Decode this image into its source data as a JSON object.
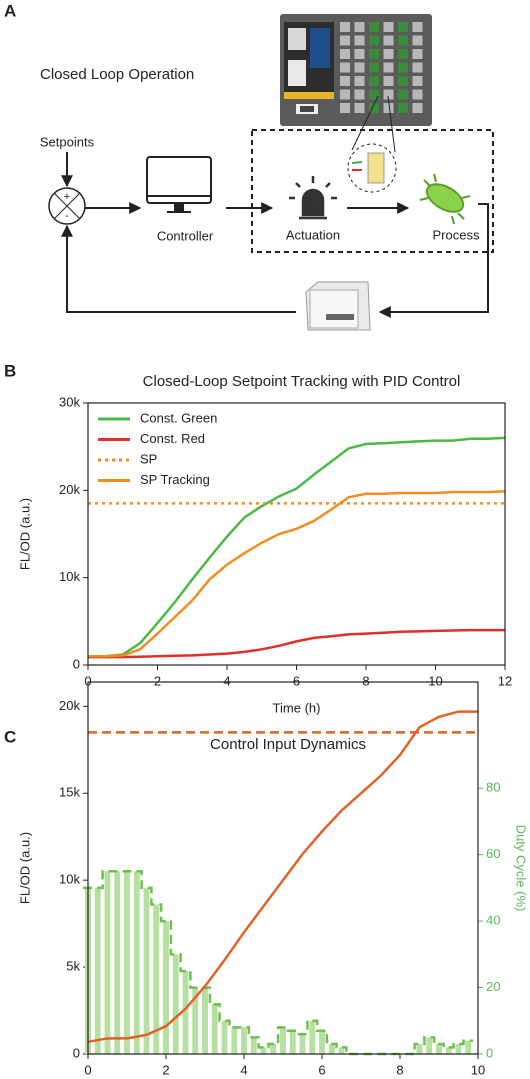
{
  "panel_a": {
    "panel": "A",
    "title": "Closed Loop Operation",
    "nodes": {
      "setpoints": "Setpoints",
      "plus": "+",
      "minus": "-",
      "controller": "Controller",
      "actuation": "Actuation",
      "process": "Process"
    }
  },
  "chart_data": [
    {
      "type": "line",
      "panel": "B",
      "title": "Closed-Loop Setpoint Tracking with PID Control",
      "xlabel": "Time (h)",
      "ylabel": "FL/OD (a.u.)",
      "x": [
        0,
        0.5,
        1,
        1.5,
        2,
        2.5,
        3,
        3.5,
        4,
        4.5,
        5,
        5.5,
        6,
        6.5,
        7,
        7.5,
        8,
        8.5,
        9,
        9.5,
        10,
        10.5,
        11,
        11.5,
        12
      ],
      "series": [
        {
          "name": "Const. Green",
          "color": "#4cb944",
          "linestyle": "solid",
          "values": [
            1000,
            1000,
            1200,
            2500,
            4800,
            7200,
            9800,
            12300,
            14700,
            16900,
            18200,
            19300,
            20200,
            21800,
            23300,
            24800,
            25300,
            25400,
            25500,
            25600,
            25700,
            25700,
            25900,
            25900,
            26000
          ]
        },
        {
          "name": "Const. Red",
          "color": "#e0302a",
          "linestyle": "solid",
          "values": [
            900,
            900,
            900,
            950,
            1000,
            1050,
            1100,
            1200,
            1300,
            1500,
            1800,
            2200,
            2700,
            3100,
            3300,
            3500,
            3600,
            3700,
            3800,
            3850,
            3900,
            3950,
            4000,
            4000,
            4000
          ]
        },
        {
          "name": "SP",
          "color": "#f28c1e",
          "linestyle": "dotted",
          "x": [
            0,
            12
          ],
          "values": [
            18500,
            18500
          ]
        },
        {
          "name": "SP Tracking",
          "color": "#f28c1e",
          "linestyle": "solid",
          "values": [
            1000,
            1000,
            1100,
            1800,
            3600,
            5500,
            7400,
            9800,
            11500,
            12800,
            14000,
            15000,
            15600,
            16500,
            17800,
            19200,
            19600,
            19600,
            19700,
            19700,
            19700,
            19800,
            19800,
            19800,
            19900
          ]
        }
      ],
      "xlim": [
        0,
        12
      ],
      "xticks": [
        0,
        2,
        4,
        6,
        8,
        10,
        12
      ],
      "ylim": [
        0,
        30000
      ],
      "yticks": [
        0,
        {
          "value": 10000,
          "label": "10k"
        },
        {
          "value": 20000,
          "label": "20k"
        },
        {
          "value": 30000,
          "label": "30k"
        }
      ],
      "legend": "upper left"
    },
    {
      "type": "combo",
      "panel": "C",
      "title": "Control Input Dynamics",
      "xlabel": "Time (h)",
      "ylabel": "FL/OD (a.u.)",
      "y2label": "Duty Cycle (%)",
      "y2color": "#5cb85c",
      "x": [
        0,
        0.5,
        1,
        1.5,
        2,
        2.5,
        3,
        3.5,
        4,
        4.5,
        5,
        5.5,
        6,
        6.5,
        7,
        7.5,
        8,
        8.5,
        9,
        9.5,
        10
      ],
      "series": [
        {
          "type": "line",
          "color": "#e0622a",
          "linestyle": "solid",
          "values": [
            700,
            900,
            900,
            1100,
            1600,
            2600,
            3900,
            5400,
            7000,
            8500,
            10000,
            11500,
            12800,
            14000,
            15000,
            16000,
            17200,
            18800,
            19400,
            19700,
            19700
          ]
        },
        {
          "type": "line",
          "color": "#e0622a",
          "linestyle": "dashed",
          "x": [
            0,
            10
          ],
          "values": [
            18500,
            18500
          ]
        },
        {
          "type": "bar",
          "axis": "y2",
          "color": "#b5e0a0",
          "outline": "#6dbf4f",
          "linestyle": "dashed",
          "x": [
            0,
            0.25,
            0.5,
            0.75,
            1,
            1.25,
            1.5,
            1.75,
            2,
            2.25,
            2.5,
            2.75,
            3,
            3.25,
            3.5,
            3.75,
            4,
            4.25,
            4.5,
            4.75,
            5,
            5.25,
            5.5,
            5.75,
            6,
            6.25,
            6.5,
            6.75,
            7,
            7.25,
            7.5,
            7.75,
            8,
            8.25,
            8.5,
            8.75,
            9,
            9.25,
            9.5,
            9.75
          ],
          "values": [
            50,
            50,
            55,
            55,
            55,
            55,
            50,
            45,
            40,
            30,
            25,
            20,
            20,
            15,
            10,
            8,
            8,
            5,
            2,
            3,
            8,
            7,
            6,
            10,
            7,
            3,
            2,
            0,
            0,
            0,
            0,
            0,
            0,
            0,
            3,
            5,
            3,
            2,
            3,
            4
          ]
        }
      ],
      "xlim": [
        0,
        10
      ],
      "xticks": [
        0,
        2,
        4,
        6,
        8,
        10
      ],
      "ylim": [
        0,
        21400
      ],
      "yticks": [
        0,
        {
          "value": 5000,
          "label": "5k"
        },
        {
          "value": 10000,
          "label": "10k"
        },
        {
          "value": 15000,
          "label": "15k"
        },
        {
          "value": 20000,
          "label": "20k"
        }
      ],
      "y2lim": [
        0,
        112
      ],
      "y2ticks": [
        0,
        20,
        40,
        60,
        80
      ]
    }
  ]
}
